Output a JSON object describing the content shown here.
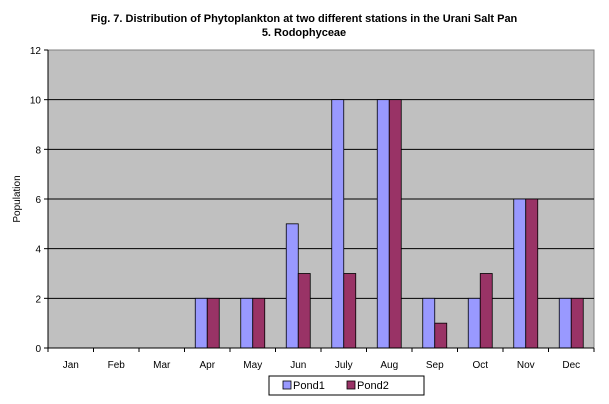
{
  "chart_data": {
    "type": "bar",
    "title": "Fig. 7. Distribution of Phytoplankton at two different stations in the Urani Salt Pan",
    "subtitle": "5. Rodophyceae",
    "xlabel": "",
    "ylabel": "Population",
    "categories": [
      "Jan",
      "Feb",
      "Mar",
      "Apr",
      "May",
      "Jun",
      "July",
      "Aug",
      "Sep",
      "Oct",
      "Nov",
      "Dec"
    ],
    "series": [
      {
        "name": "Pond1",
        "color": "#9999ff",
        "values": [
          0,
          0,
          0,
          2,
          2,
          5,
          10,
          10,
          2,
          2,
          6,
          2
        ]
      },
      {
        "name": "Pond2",
        "color": "#993366",
        "values": [
          0,
          0,
          0,
          2,
          2,
          3,
          3,
          10,
          1,
          3,
          6,
          2
        ]
      }
    ],
    "ylim": [
      0,
      12
    ],
    "yticks": [
      "0",
      "2",
      "4",
      "6",
      "8",
      "10",
      "12"
    ],
    "grid": true,
    "legend": "bottom",
    "plot_background": "#c0c0c0"
  }
}
